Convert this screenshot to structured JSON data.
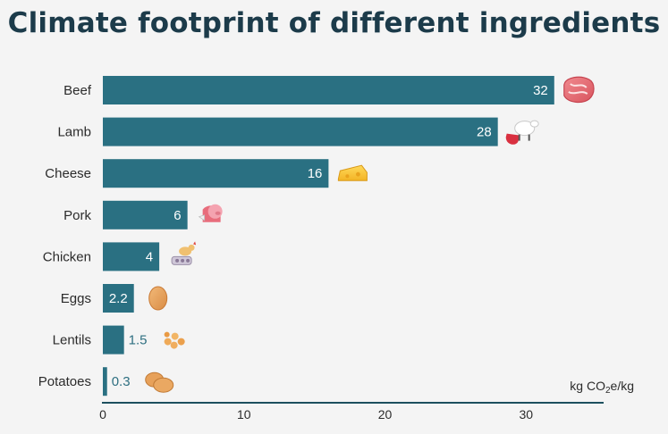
{
  "chart_data": {
    "type": "bar",
    "orientation": "horizontal",
    "title": "Climate footprint of different ingredients",
    "categories": [
      "Beef",
      "Lamb",
      "Cheese",
      "Pork",
      "Chicken",
      "Eggs",
      "Lentils",
      "Potatoes"
    ],
    "values": [
      32,
      28,
      16,
      6,
      4,
      2.2,
      1.5,
      0.3
    ],
    "value_labels": [
      "32",
      "28",
      "16",
      "6",
      "4",
      "2.2",
      "1.5",
      "0.3"
    ],
    "icons": [
      "steak-icon",
      "sheep-icon",
      "cheese-icon",
      "pig-icon",
      "chicken-icon",
      "egg-icon",
      "lentils-icon",
      "potato-icon"
    ],
    "xlabel_prefix": "kg CO",
    "xlabel_sub": "2",
    "xlabel_suffix": "e/kg",
    "xticks": [
      0,
      10,
      20,
      30
    ],
    "xlim": [
      0,
      35.5
    ],
    "grid": false,
    "bar_color": "#2a7082",
    "label_color_outside": "#2e6f81"
  }
}
